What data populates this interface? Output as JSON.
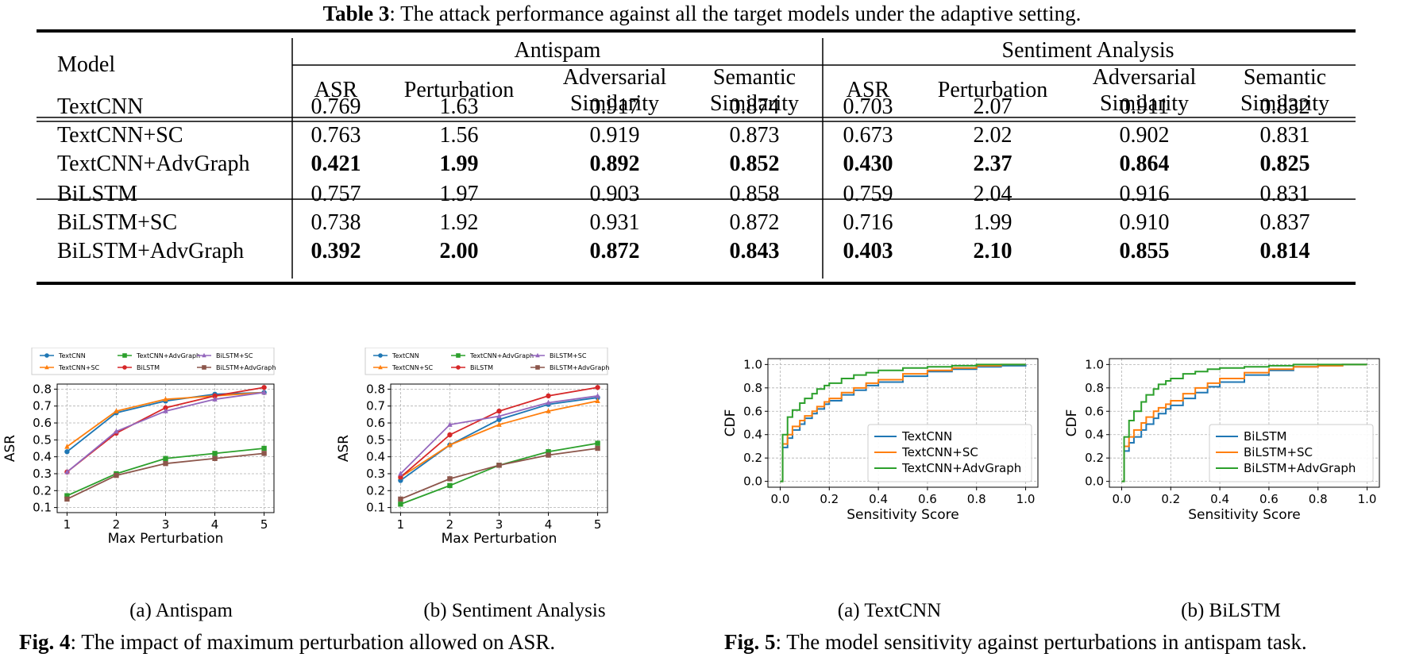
{
  "table": {
    "caption_label": "Table 3",
    "caption_text": ": The attack performance against all the target models under the adaptive setting.",
    "model_header": "Model",
    "groups": [
      "Antispam",
      "Sentiment Analysis"
    ],
    "subheaders": [
      [
        "ASR"
      ],
      [
        "Perturbation"
      ],
      [
        "Adversarial",
        "Similarity"
      ],
      [
        "Semantic",
        "Similarity"
      ]
    ],
    "rows": [
      {
        "model": "TextCNN",
        "values": [
          "0.769",
          "1.63",
          "0.917",
          "0.874",
          "0.703",
          "2.07",
          "0.911",
          "0.832"
        ],
        "bold": false
      },
      {
        "model": "TextCNN+SC",
        "values": [
          "0.763",
          "1.56",
          "0.919",
          "0.873",
          "0.673",
          "2.02",
          "0.902",
          "0.831"
        ],
        "bold": false
      },
      {
        "model": "TextCNN+AdvGraph",
        "values": [
          "0.421",
          "1.99",
          "0.892",
          "0.852",
          "0.430",
          "2.37",
          "0.864",
          "0.825"
        ],
        "bold": true
      },
      {
        "model": "BiLSTM",
        "values": [
          "0.757",
          "1.97",
          "0.903",
          "0.858",
          "0.759",
          "2.04",
          "0.916",
          "0.831"
        ],
        "bold": false
      },
      {
        "model": "BiLSTM+SC",
        "values": [
          "0.738",
          "1.92",
          "0.931",
          "0.872",
          "0.716",
          "1.99",
          "0.910",
          "0.837"
        ],
        "bold": false
      },
      {
        "model": "BiLSTM+AdvGraph",
        "values": [
          "0.392",
          "2.00",
          "0.872",
          "0.843",
          "0.403",
          "2.10",
          "0.855",
          "0.814"
        ],
        "bold": true
      }
    ]
  },
  "fig4": {
    "label": "Fig. 4",
    "text": ": The impact of maximum perturbation allowed on ASR.",
    "subcaptions": [
      "(a) Antispam",
      "(b) Sentiment Analysis"
    ]
  },
  "fig5": {
    "label": "Fig. 5",
    "text": ": The model sensitivity against perturbations in antispam task.",
    "subcaptions": [
      "(a) TextCNN",
      "(b) BiLSTM"
    ]
  },
  "colors": {
    "blue": "#1f77b4",
    "orange": "#ff7f0e",
    "green": "#2ca02c",
    "red": "#d62728",
    "purple": "#9467bd",
    "brown": "#8c564b"
  },
  "chart_data": [
    {
      "type": "line",
      "xlabel": "Max Perturbation",
      "ylabel": "ASR",
      "x": [
        1,
        2,
        3,
        4,
        5
      ],
      "ylim": [
        0.07,
        0.83
      ],
      "yticks": [
        0.1,
        0.2,
        0.3,
        0.4,
        0.5,
        0.6,
        0.7,
        0.8
      ],
      "grid": true,
      "legend": "top",
      "series": [
        {
          "name": "TextCNN",
          "color": "#1f77b4",
          "marker": "circle",
          "values": [
            0.43,
            0.66,
            0.73,
            0.77,
            0.78
          ]
        },
        {
          "name": "TextCNN+SC",
          "color": "#ff7f0e",
          "marker": "triangle",
          "values": [
            0.46,
            0.67,
            0.74,
            0.76,
            0.78
          ]
        },
        {
          "name": "TextCNN+AdvGraph",
          "color": "#2ca02c",
          "marker": "square",
          "values": [
            0.17,
            0.3,
            0.39,
            0.42,
            0.45
          ]
        },
        {
          "name": "BiLSTM",
          "color": "#d62728",
          "marker": "circle",
          "values": [
            0.31,
            0.54,
            0.69,
            0.76,
            0.81
          ]
        },
        {
          "name": "BiLSTM+SC",
          "color": "#9467bd",
          "marker": "triangle",
          "values": [
            0.31,
            0.55,
            0.67,
            0.74,
            0.78
          ]
        },
        {
          "name": "BiLSTM+AdvGraph",
          "color": "#8c564b",
          "marker": "square",
          "values": [
            0.15,
            0.29,
            0.36,
            0.39,
            0.42
          ]
        }
      ]
    },
    {
      "type": "line",
      "xlabel": "Max Perturbation",
      "ylabel": "ASR",
      "x": [
        1,
        2,
        3,
        4,
        5
      ],
      "ylim": [
        0.07,
        0.83
      ],
      "yticks": [
        0.1,
        0.2,
        0.3,
        0.4,
        0.5,
        0.6,
        0.7,
        0.8
      ],
      "grid": true,
      "legend": "top",
      "series": [
        {
          "name": "TextCNN",
          "color": "#1f77b4",
          "marker": "circle",
          "values": [
            0.26,
            0.47,
            0.62,
            0.71,
            0.75
          ]
        },
        {
          "name": "TextCNN+SC",
          "color": "#ff7f0e",
          "marker": "triangle",
          "values": [
            0.28,
            0.47,
            0.59,
            0.67,
            0.73
          ]
        },
        {
          "name": "TextCNN+AdvGraph",
          "color": "#2ca02c",
          "marker": "square",
          "values": [
            0.12,
            0.23,
            0.35,
            0.43,
            0.48
          ]
        },
        {
          "name": "BiLSTM",
          "color": "#d62728",
          "marker": "circle",
          "values": [
            0.28,
            0.53,
            0.67,
            0.76,
            0.81
          ]
        },
        {
          "name": "BiLSTM+SC",
          "color": "#9467bd",
          "marker": "triangle",
          "values": [
            0.3,
            0.59,
            0.64,
            0.72,
            0.76
          ]
        },
        {
          "name": "BiLSTM+AdvGraph",
          "color": "#8c564b",
          "marker": "square",
          "values": [
            0.15,
            0.27,
            0.35,
            0.41,
            0.45
          ]
        }
      ]
    },
    {
      "type": "line",
      "xlabel": "Sensitivity Score",
      "ylabel": "CDF",
      "xlim": [
        -0.05,
        1.05
      ],
      "ylim": [
        -0.05,
        1.05
      ],
      "xticks": [
        0.0,
        0.2,
        0.4,
        0.6,
        0.8,
        1.0
      ],
      "yticks": [
        0.0,
        0.2,
        0.4,
        0.6,
        0.8,
        1.0
      ],
      "grid": true,
      "legend": "bottom-right",
      "series": [
        {
          "name": "TextCNN",
          "color": "#1f77b4",
          "x": [
            0,
            0.01,
            0.03,
            0.05,
            0.08,
            0.1,
            0.13,
            0.15,
            0.18,
            0.2,
            0.25,
            0.3,
            0.35,
            0.4,
            0.5,
            0.6,
            0.7,
            0.8,
            0.9,
            1.0
          ],
          "values": [
            0,
            0.29,
            0.37,
            0.44,
            0.49,
            0.54,
            0.58,
            0.62,
            0.66,
            0.69,
            0.74,
            0.78,
            0.82,
            0.85,
            0.9,
            0.94,
            0.96,
            0.98,
            0.99,
            1.0
          ]
        },
        {
          "name": "TextCNN+SC",
          "color": "#ff7f0e",
          "x": [
            0,
            0.01,
            0.03,
            0.05,
            0.08,
            0.1,
            0.13,
            0.15,
            0.18,
            0.2,
            0.25,
            0.3,
            0.35,
            0.4,
            0.5,
            0.6,
            0.7,
            0.8,
            0.9,
            1.0
          ],
          "values": [
            0,
            0.32,
            0.4,
            0.47,
            0.52,
            0.56,
            0.6,
            0.64,
            0.68,
            0.71,
            0.76,
            0.8,
            0.84,
            0.87,
            0.92,
            0.95,
            0.97,
            0.99,
            1.0,
            1.0
          ]
        },
        {
          "name": "TextCNN+AdvGraph",
          "color": "#2ca02c",
          "x": [
            0,
            0.01,
            0.03,
            0.05,
            0.08,
            0.1,
            0.13,
            0.15,
            0.18,
            0.2,
            0.25,
            0.3,
            0.35,
            0.4,
            0.5,
            0.6,
            0.7,
            0.8,
            0.9,
            1.0
          ],
          "values": [
            0,
            0.4,
            0.55,
            0.61,
            0.67,
            0.71,
            0.75,
            0.79,
            0.82,
            0.84,
            0.88,
            0.91,
            0.93,
            0.95,
            0.97,
            0.98,
            0.99,
            1.0,
            1.0,
            1.0
          ]
        }
      ]
    },
    {
      "type": "line",
      "xlabel": "Sensitivity Score",
      "ylabel": "CDF",
      "xlim": [
        -0.05,
        1.05
      ],
      "ylim": [
        -0.05,
        1.05
      ],
      "xticks": [
        0.0,
        0.2,
        0.4,
        0.6,
        0.8,
        1.0
      ],
      "yticks": [
        0.0,
        0.2,
        0.4,
        0.6,
        0.8,
        1.0
      ],
      "grid": true,
      "legend": "bottom-right",
      "series": [
        {
          "name": "BiLSTM",
          "color": "#1f77b4",
          "x": [
            0,
            0.01,
            0.03,
            0.05,
            0.08,
            0.1,
            0.13,
            0.15,
            0.18,
            0.2,
            0.25,
            0.3,
            0.35,
            0.4,
            0.5,
            0.6,
            0.7,
            0.8,
            0.9,
            1.0
          ],
          "values": [
            0,
            0.26,
            0.33,
            0.38,
            0.44,
            0.49,
            0.54,
            0.58,
            0.62,
            0.65,
            0.71,
            0.76,
            0.81,
            0.85,
            0.91,
            0.95,
            0.98,
            0.99,
            1.0,
            1.0
          ]
        },
        {
          "name": "BiLSTM+SC",
          "color": "#ff7f0e",
          "x": [
            0,
            0.01,
            0.03,
            0.05,
            0.08,
            0.1,
            0.13,
            0.15,
            0.18,
            0.2,
            0.25,
            0.3,
            0.35,
            0.4,
            0.5,
            0.6,
            0.7,
            0.8,
            0.9,
            1.0
          ],
          "values": [
            0,
            0.3,
            0.38,
            0.44,
            0.5,
            0.55,
            0.6,
            0.63,
            0.66,
            0.69,
            0.75,
            0.8,
            0.84,
            0.88,
            0.93,
            0.96,
            0.98,
            0.99,
            1.0,
            1.0
          ]
        },
        {
          "name": "BiLSTM+AdvGraph",
          "color": "#2ca02c",
          "x": [
            0,
            0.01,
            0.03,
            0.05,
            0.08,
            0.1,
            0.13,
            0.15,
            0.18,
            0.2,
            0.25,
            0.3,
            0.35,
            0.4,
            0.5,
            0.6,
            0.7,
            0.8,
            0.9,
            1.0
          ],
          "values": [
            0,
            0.38,
            0.52,
            0.6,
            0.68,
            0.74,
            0.79,
            0.83,
            0.86,
            0.88,
            0.92,
            0.94,
            0.96,
            0.97,
            0.98,
            0.99,
            1.0,
            1.0,
            1.0,
            1.0
          ]
        }
      ]
    }
  ]
}
